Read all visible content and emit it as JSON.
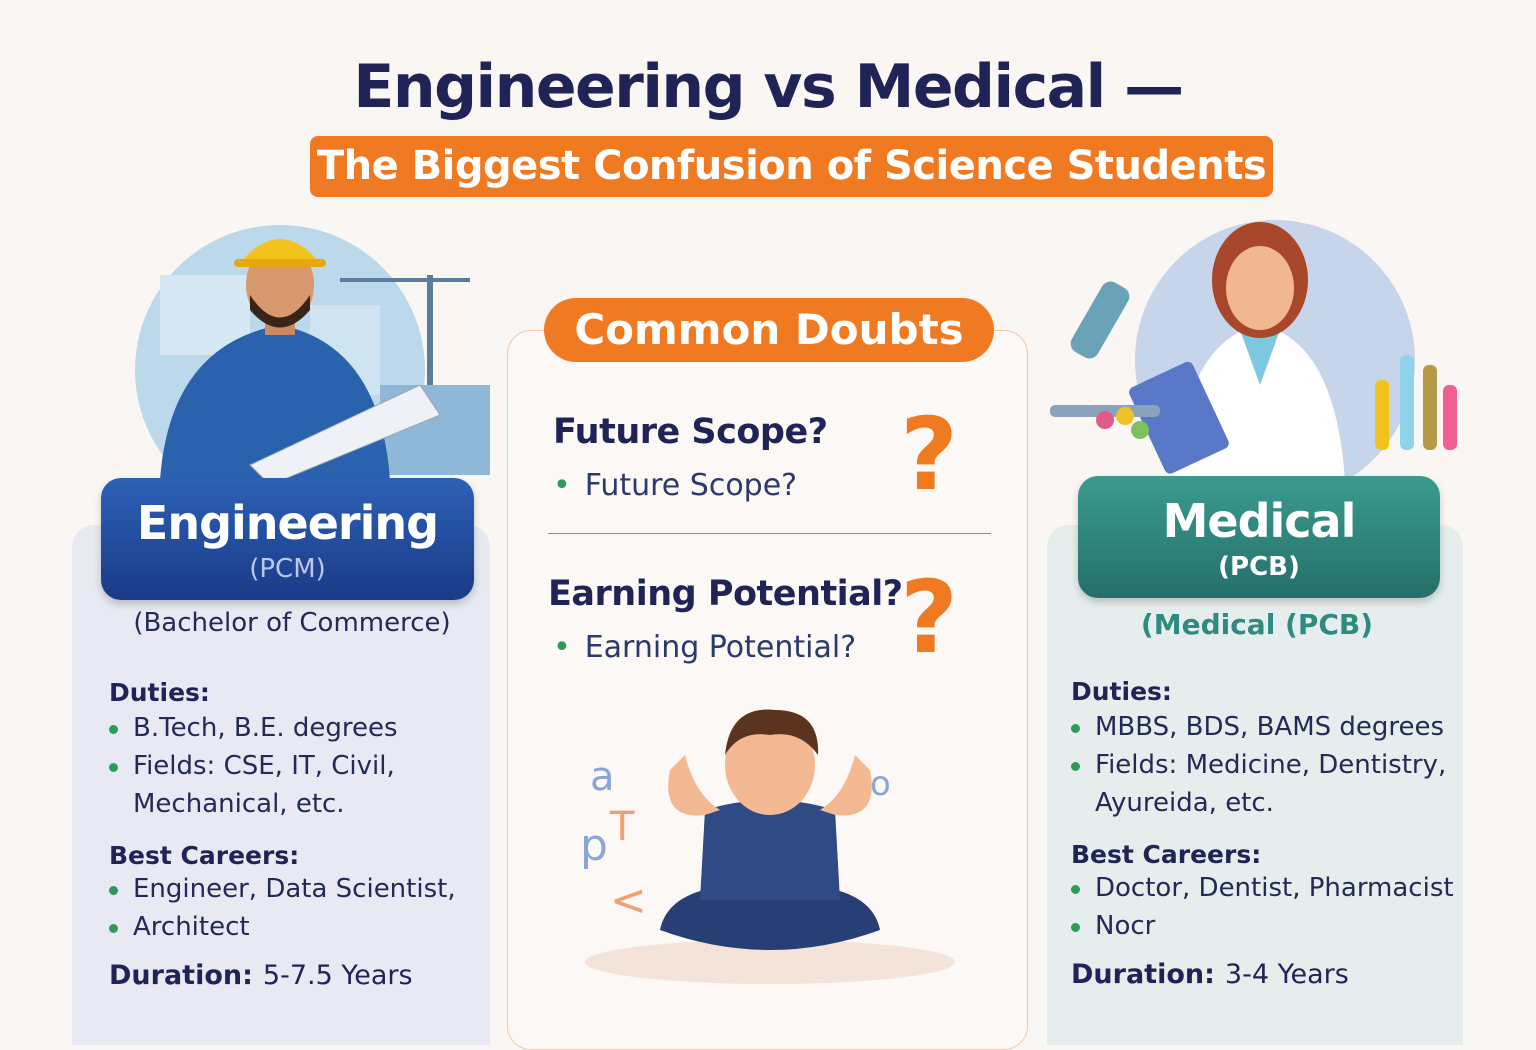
{
  "title": "Engineering vs Medical —",
  "subtitle": "The Biggest Confusion of Science Students",
  "engineering": {
    "title": "Engineering",
    "stream": "(PCM)",
    "degree": "(Bachelor of Commerce)",
    "duties_label": "Duties:",
    "duties": [
      "B.Tech, B.E. degrees",
      "Fields: CSE, IT, Civil, Mechanical, etc."
    ],
    "careers_label": "Best Careers:",
    "careers": [
      "Engineer, Data Scientist,",
      "Architect"
    ],
    "duration_label": "Duration:",
    "duration": "5-7.5 Years"
  },
  "doubts": {
    "title": "Common Doubts",
    "items": [
      {
        "question": "Future Scope?",
        "bullet": "Future Scope?",
        "mark": "?"
      },
      {
        "question": "Earning Potential?",
        "bullet": "Earning Potential?",
        "mark": "?"
      }
    ]
  },
  "medical": {
    "title": "Medical",
    "stream": "(PCB)",
    "degree": "(Medical (PCB)",
    "duties_label": "Duties:",
    "duties": [
      "MBBS, BDS, BAMS  degrees",
      "Fields: Medicine, Dentistry, Ayureida, etc."
    ],
    "careers_label": "Best Careers:",
    "careers": [
      "Doctor, Dentist, Pharmacist",
      "Nocr"
    ],
    "duration_label": "Duration:",
    "duration": "3-4 Years"
  },
  "colors": {
    "navy": "#1f2355",
    "orange": "#f07a22",
    "blue": "#1b3a88",
    "teal": "#2f8a80",
    "bullet": "#2e9a5a"
  },
  "icons": [
    "engineer-illustration",
    "doctor-illustration",
    "confused-student-illustration",
    "question-mark-icon"
  ]
}
